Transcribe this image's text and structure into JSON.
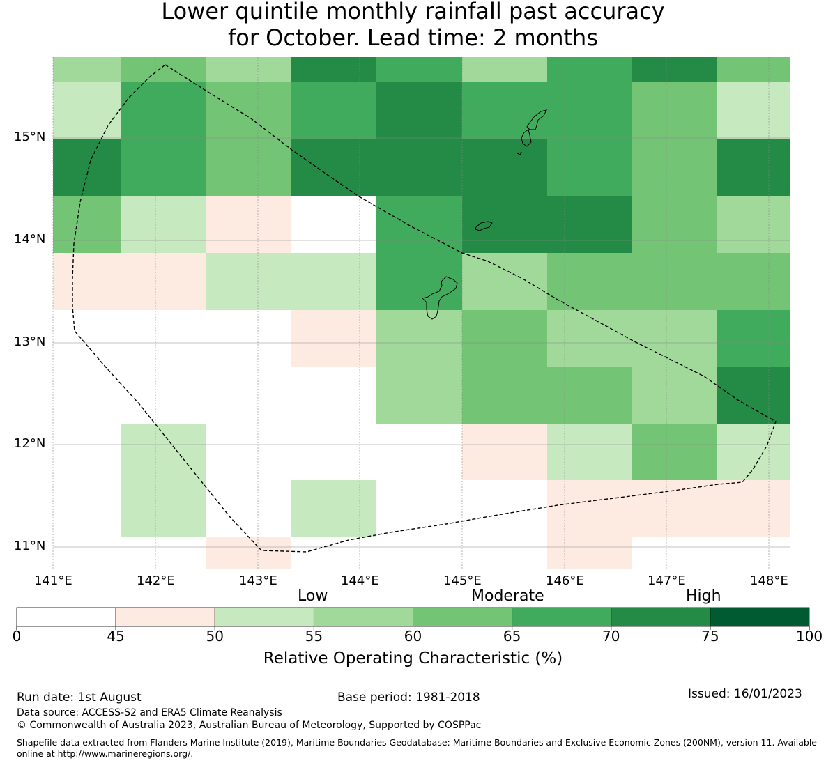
{
  "title": {
    "line1": "Lower quintile monthly rainfall past accuracy",
    "line2": "for October. Lead time: 2 months"
  },
  "map": {
    "lon_labels": [
      "141°E",
      "142°E",
      "143°E",
      "144°E",
      "145°E",
      "146°E",
      "147°E",
      "148°E"
    ],
    "lat_labels": [
      "15°N",
      "14°N",
      "13°N",
      "12°N",
      "11°N"
    ],
    "grid_values_percent_rows_north_to_south": [
      [
        57,
        62,
        57,
        72,
        67,
        57,
        67,
        72,
        62
      ],
      [
        52,
        67,
        62,
        67,
        72,
        67,
        67,
        62,
        52
      ],
      [
        72,
        67,
        62,
        72,
        72,
        72,
        67,
        62,
        72
      ],
      [
        62,
        52,
        47,
        30,
        67,
        72,
        72,
        62,
        57
      ],
      [
        47,
        47,
        52,
        52,
        67,
        57,
        62,
        62,
        62
      ],
      [
        30,
        30,
        30,
        47,
        57,
        62,
        57,
        57,
        67
      ],
      [
        30,
        30,
        30,
        30,
        57,
        62,
        62,
        57,
        72
      ],
      [
        30,
        52,
        30,
        30,
        30,
        47,
        52,
        62,
        52
      ],
      [
        30,
        52,
        30,
        52,
        30,
        30,
        47,
        47,
        47
      ],
      [
        30,
        30,
        47,
        30,
        30,
        30,
        47,
        30,
        30
      ]
    ]
  },
  "legend": {
    "categories": [
      "Low",
      "Moderate",
      "High"
    ],
    "bins": [
      {
        "from": 0,
        "to": 45,
        "color": "#ffffff"
      },
      {
        "from": 45,
        "to": 50,
        "color": "#fdebe2"
      },
      {
        "from": 50,
        "to": 55,
        "color": "#c7e9c0"
      },
      {
        "from": 55,
        "to": 60,
        "color": "#a1d99b"
      },
      {
        "from": 60,
        "to": 65,
        "color": "#74c476"
      },
      {
        "from": 65,
        "to": 70,
        "color": "#41ab5d"
      },
      {
        "from": 70,
        "to": 75,
        "color": "#238b45"
      },
      {
        "from": 75,
        "to": 100,
        "color": "#005a32"
      }
    ],
    "tick_labels": [
      "0",
      "45",
      "50",
      "55",
      "60",
      "65",
      "70",
      "75",
      "100"
    ],
    "label": "Relative Operating Characteristic (%)"
  },
  "footer": {
    "run_date": "Run date: 1st August",
    "base_period": "Base period: 1981-2018",
    "issued": "Issued: 16/01/2023",
    "data_source": "Data source: ACCESS-S2 and ERA5 Climate Reanalysis",
    "copyright": "© Commonwealth of Australia 2023, Australian Bureau of Meteorology, Supported by COSPPac",
    "shapefile": "Shapefile data extracted from Flanders Marine Institute (2019), Maritime Boundaries Geodatabase: Maritime Boundaries and Exclusive Economic Zones (200NM), version 11. Available online at http://www.marineregions.org/."
  }
}
